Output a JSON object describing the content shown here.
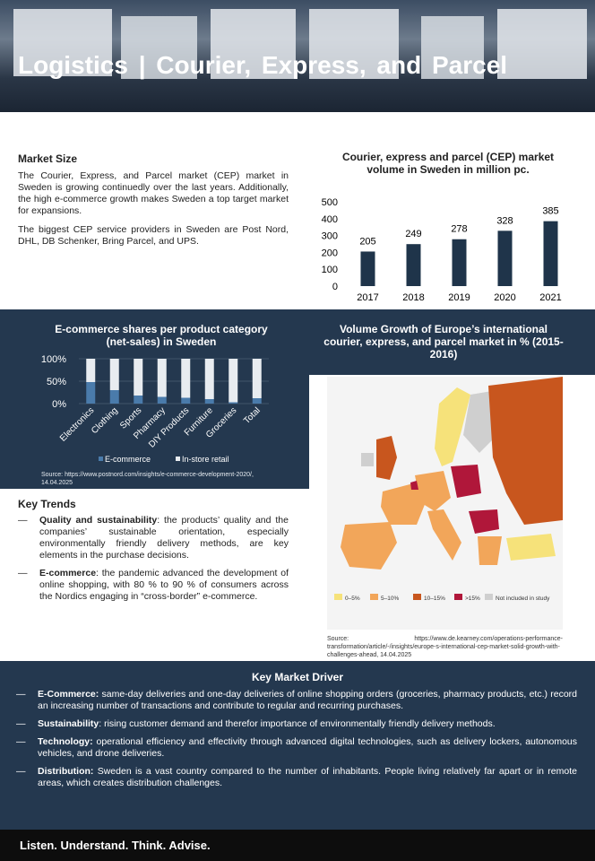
{
  "header": {
    "title": "Logistics | Courier, Express, and Parcel"
  },
  "market_size": {
    "title": "Market Size",
    "paragraphs": [
      "The Courier, Express, and Parcel market (CEP) market in Sweden is growing continuedly over the last years. Additionally, the high e-commerce growth makes Sweden a top target market for expansions.",
      "The biggest CEP service providers in Sweden are Post Nord, DHL, DB Schenker, Bring Parcel, and UPS."
    ]
  },
  "chart_data": [
    {
      "type": "bar",
      "title": "Courier, express and parcel (CEP) market volume in Sweden in million pc.",
      "categories": [
        "2017",
        "2018",
        "2019",
        "2020",
        "2021"
      ],
      "values": [
        205,
        249,
        278,
        328,
        385
      ],
      "color": "#1f344a",
      "ylim": [
        0,
        500
      ],
      "yticks": [
        0,
        100,
        200,
        300,
        400,
        500
      ]
    },
    {
      "type": "stacked_bar",
      "title": "E-commerce shares per product category (net-sales) in Sweden",
      "categories": [
        "Electronics",
        "Clothing",
        "Sports",
        "Pharmacy",
        "DIY Products",
        "Furniture",
        "Groceries",
        "Total"
      ],
      "series": [
        {
          "name": "E-commerce",
          "color": "#4a7bab",
          "values": [
            48,
            30,
            18,
            15,
            13,
            10,
            3,
            12
          ]
        },
        {
          "name": "In-store retail",
          "color": "#e8ecf0",
          "values": [
            52,
            70,
            82,
            85,
            87,
            90,
            97,
            88
          ]
        }
      ],
      "ylim": [
        0,
        100
      ],
      "yticks": [
        {
          "value": 0,
          "label": "0%"
        },
        {
          "value": 50,
          "label": "50%"
        },
        {
          "value": 100,
          "label": "100%"
        }
      ],
      "source": "Source: https://www.postnord.com/insights/e-commerce-development-2020/, 14.04.2025"
    }
  ],
  "map": {
    "title": "Volume Growth of Europe’s international courier, express, and parcel market in % (2015-2016)",
    "legend": [
      {
        "label": "0–5%",
        "color": "#f6e27a"
      },
      {
        "label": "5–10%",
        "color": "#f2a65a"
      },
      {
        "label": "10–15%",
        "color": "#c8561e"
      },
      {
        "label": ">15%",
        "color": "#b0173a"
      },
      {
        "label": "Not included in study",
        "color": "#cfcfcf"
      }
    ],
    "source": "Source: https://www.de.kearney.com/operations-performance-transformation/article/-/insights/europe-s-international-cep-market-solid-growth-with-challenges-ahead, 14.04.2025"
  },
  "key_trends": {
    "title": "Key Trends",
    "items": [
      {
        "term": "Quality and sustainability",
        "text": ": the products’ quality and the companies’ sustainable orientation, especially environmentally friendly delivery methods, are key elements in the purchase decisions."
      },
      {
        "term": "E-commerce",
        "text": ": the pandemic advanced the development of online shopping, with 80 % to 90 % of consumers across the Nordics engaging in “cross-border” e-commerce."
      }
    ]
  },
  "key_market_driver": {
    "title": "Key Market Driver",
    "items": [
      {
        "term": "E-Commerce:",
        "text": " same-day deliveries and one-day deliveries of online shopping orders (groceries, pharmacy products, etc.) record an increasing number of transactions and contribute to regular and recurring purchases."
      },
      {
        "term": "Sustainability",
        "text": ": rising customer demand and therefor importance of environmentally friendly delivery methods."
      },
      {
        "term": "Technology:",
        "text": " operational efficiency and effectivity through advanced digital technologies, such as delivery lockers, autonomous vehicles, and drone deliveries."
      },
      {
        "term": "Distribution:",
        "text": " Sweden is a vast country compared to the number of inhabitants. People living relatively far apart or in remote areas, which creates distribution challenges."
      }
    ]
  },
  "footer": {
    "slogan": "Listen. Understand. Think. Advise."
  }
}
